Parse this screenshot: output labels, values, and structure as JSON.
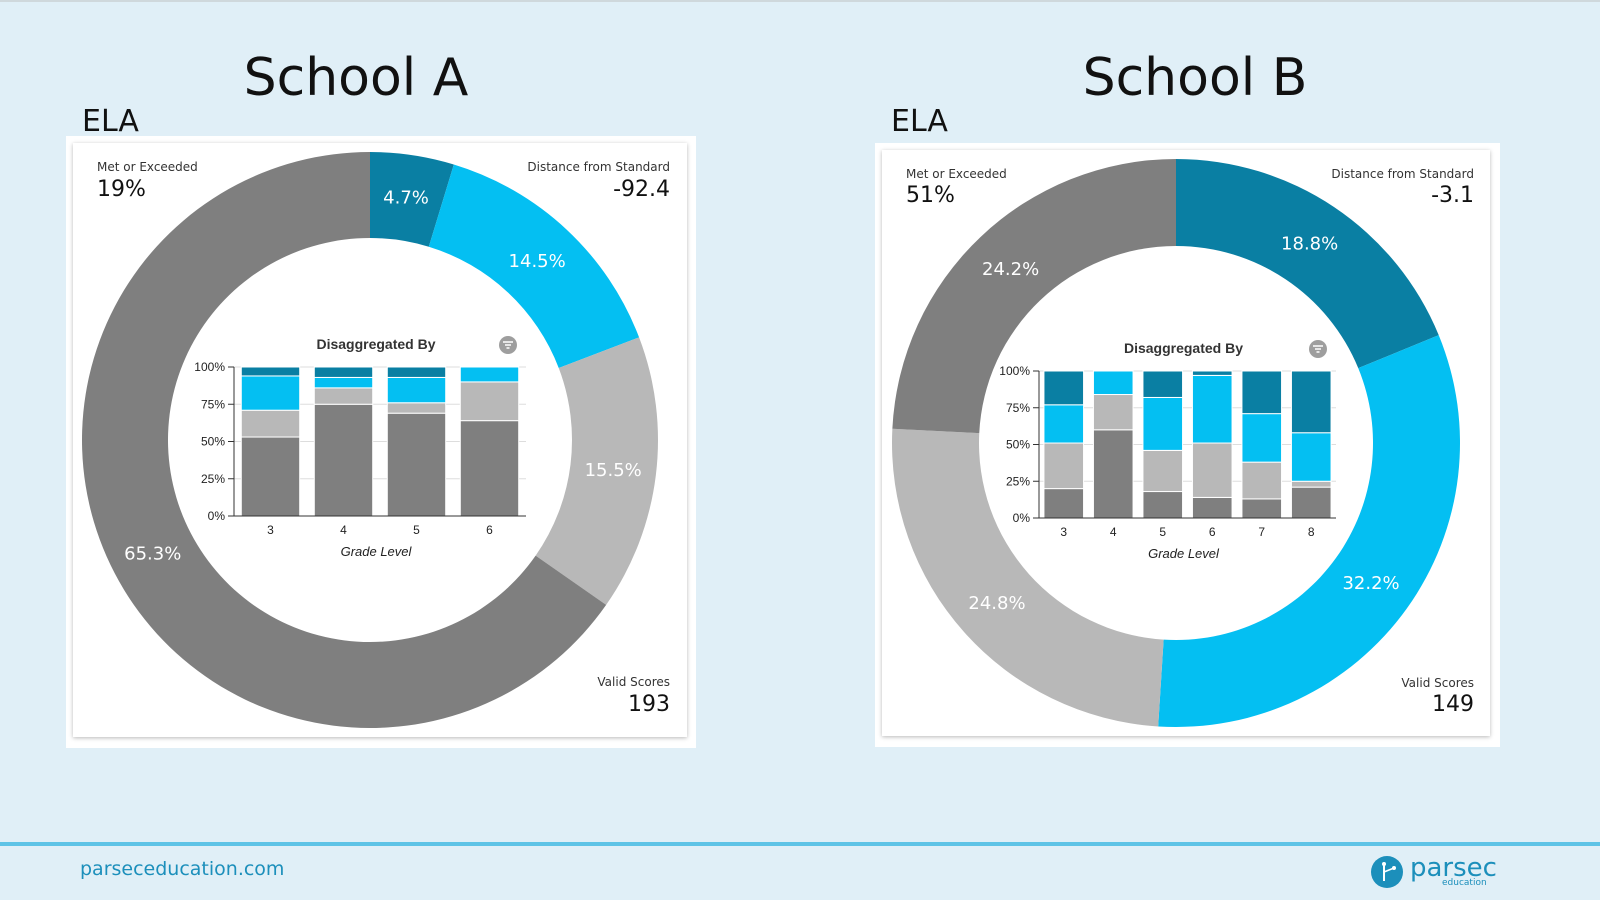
{
  "colors": {
    "exceeded": "#0a7fa3",
    "met": "#04bff2",
    "nearly_met": "#b8b8b8",
    "not_met": "#7f7f7f"
  },
  "footer": {
    "url": "parseceducation.com",
    "logo_text": "parsec",
    "logo_sub": "education"
  },
  "chart_data": [
    {
      "school": "School A",
      "subject": "ELA",
      "met_or_exceeded_label": "Met or Exceeded",
      "met_or_exceeded_value": "19%",
      "distance_label": "Distance from Standard",
      "distance_value": "-92.4",
      "valid_scores_label": "Valid Scores",
      "valid_scores_value": "193",
      "type": "pie",
      "slices": [
        {
          "label": "4.7%",
          "value": 4.7,
          "color": "#0a7fa3"
        },
        {
          "label": "14.5%",
          "value": 14.5,
          "color": "#04bff2"
        },
        {
          "label": "15.5%",
          "value": 15.5,
          "color": "#b8b8b8"
        },
        {
          "label": "65.3%",
          "value": 65.3,
          "color": "#7f7f7f"
        }
      ],
      "inner_chart": {
        "type": "bar",
        "title": "Disaggregated By",
        "xlabel": "Grade Level",
        "ylabel": "",
        "yticks": [
          "0%",
          "25%",
          "50%",
          "75%",
          "100%"
        ],
        "categories": [
          "3",
          "4",
          "5",
          "6"
        ],
        "series": [
          {
            "values": [
              53,
              75,
              69,
              64
            ],
            "color": "#7f7f7f"
          },
          {
            "values": [
              18,
              11,
              7,
              26
            ],
            "color": "#b8b8b8"
          },
          {
            "values": [
              23,
              7,
              17,
              10
            ],
            "color": "#04bff2"
          },
          {
            "values": [
              6,
              7,
              7,
              0
            ],
            "color": "#0a7fa3"
          }
        ]
      }
    },
    {
      "school": "School B",
      "subject": "ELA",
      "met_or_exceeded_label": "Met or Exceeded",
      "met_or_exceeded_value": "51%",
      "distance_label": "Distance from Standard",
      "distance_value": "-3.1",
      "valid_scores_label": "Valid Scores",
      "valid_scores_value": "149",
      "type": "pie",
      "slices": [
        {
          "label": "18.8%",
          "value": 18.8,
          "color": "#0a7fa3"
        },
        {
          "label": "32.2%",
          "value": 32.2,
          "color": "#04bff2"
        },
        {
          "label": "24.8%",
          "value": 24.8,
          "color": "#b8b8b8"
        },
        {
          "label": "24.2%",
          "value": 24.2,
          "color": "#7f7f7f"
        }
      ],
      "inner_chart": {
        "type": "bar",
        "title": "Disaggregated By",
        "xlabel": "Grade Level",
        "ylabel": "",
        "yticks": [
          "0%",
          "25%",
          "50%",
          "75%",
          "100%"
        ],
        "categories": [
          "3",
          "4",
          "5",
          "6",
          "7",
          "8"
        ],
        "series": [
          {
            "values": [
              20,
              60,
              18,
              14,
              13,
              21
            ],
            "color": "#7f7f7f"
          },
          {
            "values": [
              31,
              24,
              28,
              37,
              25,
              4
            ],
            "color": "#b8b8b8"
          },
          {
            "values": [
              26,
              16,
              36,
              46,
              33,
              33
            ],
            "color": "#04bff2"
          },
          {
            "values": [
              23,
              0,
              18,
              3,
              29,
              42
            ],
            "color": "#0a7fa3"
          }
        ]
      }
    }
  ]
}
